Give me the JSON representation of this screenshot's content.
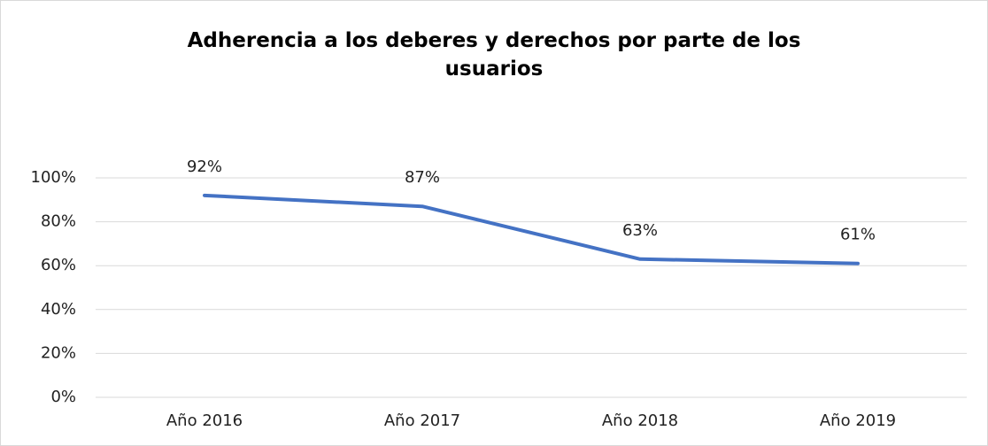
{
  "chart_data": {
    "type": "line",
    "title": "Adherencia a los deberes y derechos por parte de los usuarios",
    "categories": [
      "Año 2016",
      "Año 2017",
      "Año 2018",
      "Año 2019"
    ],
    "series": [
      {
        "name": "Adherencia",
        "color": "#4472c4",
        "values": [
          92,
          87,
          63,
          61
        ],
        "value_labels": [
          "92%",
          "87%",
          "63%",
          "61%"
        ]
      }
    ],
    "ylim": [
      0,
      100
    ],
    "yticks": [
      {
        "value": 0,
        "label": "0%"
      },
      {
        "value": 20,
        "label": "20%"
      },
      {
        "value": 40,
        "label": "40%"
      },
      {
        "value": 60,
        "label": "60%"
      },
      {
        "value": 80,
        "label": "80%"
      },
      {
        "value": 100,
        "label": "100%"
      }
    ],
    "grid": true
  }
}
